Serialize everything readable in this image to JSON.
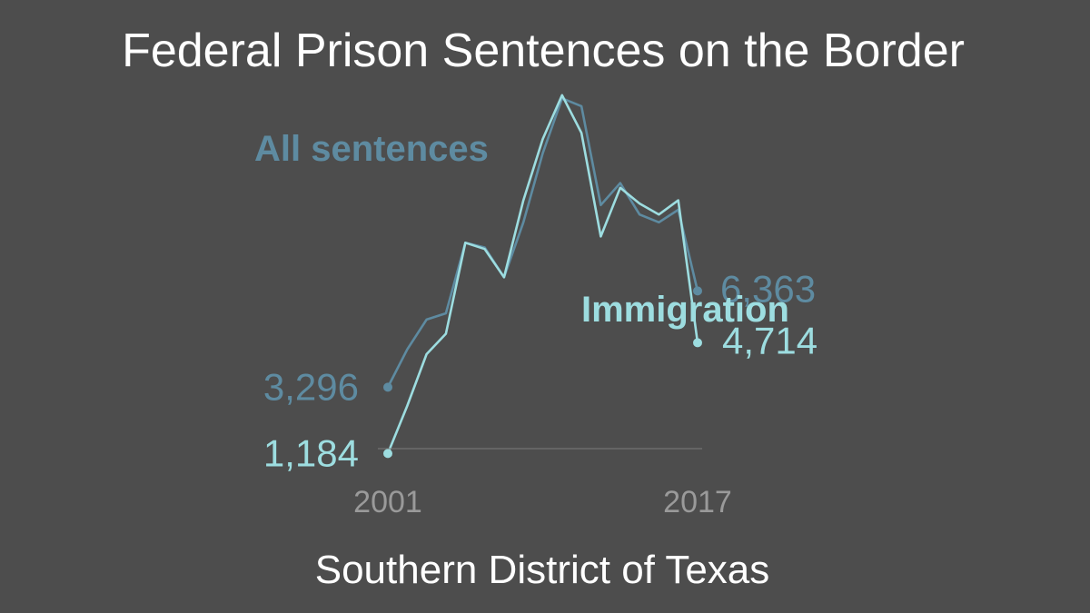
{
  "chart_data": {
    "type": "line",
    "title": "Federal Prison Sentences on the Border",
    "subtitle": "Southern District of Texas",
    "x": [
      2001,
      2002,
      2003,
      2004,
      2005,
      2006,
      2007,
      2008,
      2009,
      2010,
      2011,
      2012,
      2013,
      2014,
      2015,
      2016,
      2017
    ],
    "x_tick_labels": [
      "2001",
      "2017"
    ],
    "series": [
      {
        "name": "All sentences",
        "color": "#5e8ba1",
        "values": [
          3296,
          4500,
          5450,
          5650,
          7900,
          7750,
          6800,
          8550,
          10750,
          12500,
          12250,
          9100,
          9800,
          8800,
          8550,
          8950,
          6363
        ],
        "start_label": "3,296",
        "end_label": "6,363"
      },
      {
        "name": "Immigration",
        "color": "#9ddde0",
        "values": [
          1184,
          2700,
          4350,
          5000,
          7900,
          7700,
          6800,
          9250,
          11200,
          12600,
          11400,
          8100,
          9650,
          9150,
          8800,
          9250,
          4714
        ],
        "start_label": "1,184",
        "end_label": "4,714"
      }
    ],
    "axis_color": "#7a7a7a",
    "tick_label_color": "#9a9a9a",
    "title_color": "#ffffff",
    "grid": false,
    "legend": "inline labels"
  }
}
